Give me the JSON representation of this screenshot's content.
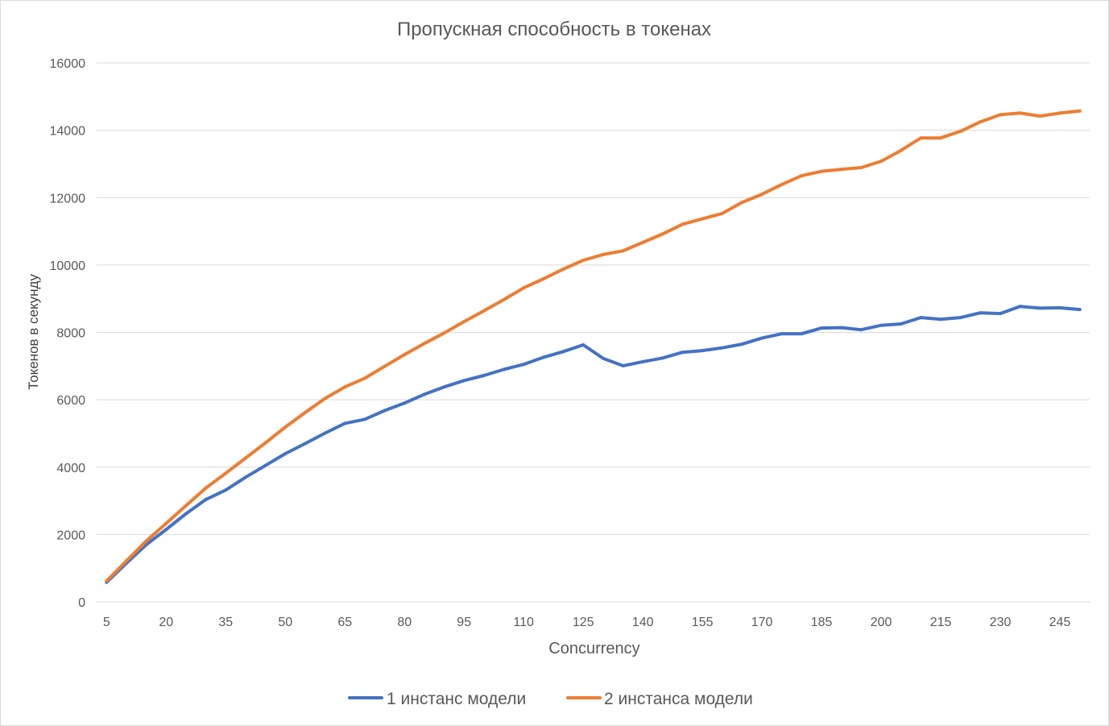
{
  "chart_data": {
    "type": "line",
    "title": "Пропускная способность в токенах",
    "xlabel": "Concurrency",
    "ylabel": "Токенов в секунду",
    "x": [
      5,
      10,
      15,
      20,
      25,
      30,
      35,
      40,
      45,
      50,
      55,
      60,
      65,
      70,
      75,
      80,
      85,
      90,
      95,
      100,
      105,
      110,
      115,
      120,
      125,
      130,
      135,
      140,
      145,
      150,
      155,
      160,
      165,
      170,
      175,
      180,
      185,
      190,
      195,
      200,
      205,
      210,
      215,
      220,
      225,
      230,
      235,
      240,
      245,
      250
    ],
    "x_tick_labels": [
      "5",
      "20",
      "35",
      "50",
      "65",
      "80",
      "95",
      "110",
      "125",
      "140",
      "155",
      "170",
      "185",
      "200",
      "215",
      "230",
      "245"
    ],
    "ylim": [
      0,
      16000
    ],
    "y_ticks": [
      0,
      2000,
      4000,
      6000,
      8000,
      10000,
      12000,
      14000,
      16000
    ],
    "grid": true,
    "legend_position": "bottom",
    "series": [
      {
        "name": "1 инстанс модели",
        "color": "#4472c4",
        "values": [
          580,
          1150,
          1700,
          2150,
          2620,
          3040,
          3320,
          3700,
          4050,
          4400,
          4700,
          5010,
          5300,
          5420,
          5680,
          5900,
          6160,
          6380,
          6570,
          6720,
          6900,
          7050,
          7260,
          7430,
          7630,
          7230,
          7010,
          7130,
          7240,
          7410,
          7460,
          7540,
          7650,
          7830,
          7960,
          7960,
          8130,
          8140,
          8080,
          8210,
          8250,
          8440,
          8390,
          8440,
          8580,
          8560,
          8770,
          8720,
          8730,
          8680
        ]
      },
      {
        "name": "2 инстанса модели",
        "color": "#ed7d31",
        "values": [
          620,
          1220,
          1810,
          2330,
          2860,
          3380,
          3820,
          4270,
          4720,
          5190,
          5620,
          6040,
          6380,
          6640,
          6990,
          7340,
          7670,
          7980,
          8320,
          8640,
          8970,
          9320,
          9590,
          9880,
          10140,
          10310,
          10420,
          10670,
          10920,
          11210,
          11370,
          11530,
          11860,
          12100,
          12390,
          12650,
          12780,
          12840,
          12890,
          13080,
          13400,
          13770,
          13770,
          13970,
          14250,
          14460,
          14510,
          14420,
          14510,
          14570
        ]
      }
    ]
  }
}
